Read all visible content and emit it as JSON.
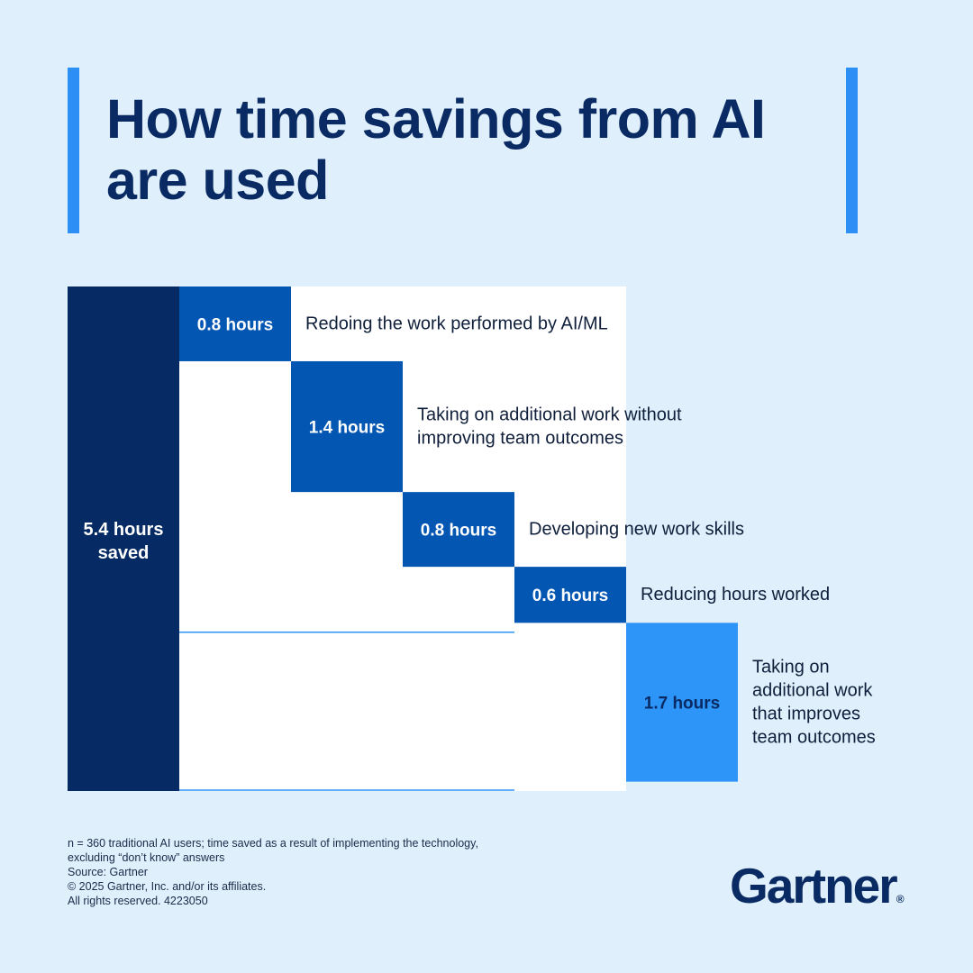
{
  "title": "How time savings from AI are used",
  "chart_data": {
    "type": "bar",
    "total": {
      "value": 5.4,
      "label_line1": "5.4 hours",
      "label_line2": "saved"
    },
    "segments": [
      {
        "value": 0.8,
        "label": "0.8 hours",
        "description": [
          "Redoing the work performed by AI/ML"
        ],
        "color": "#0456b3"
      },
      {
        "value": 1.4,
        "label": "1.4 hours",
        "description": [
          "Taking on additional work without",
          "improving team outcomes"
        ],
        "color": "#0456b3"
      },
      {
        "value": 0.8,
        "label": "0.8 hours",
        "description": [
          "Developing new work skills"
        ],
        "color": "#0456b3"
      },
      {
        "value": 0.6,
        "label": "0.6 hours",
        "description": [
          "Reducing hours worked"
        ],
        "color": "#0456b3"
      },
      {
        "value": 1.7,
        "label": "1.7 hours",
        "description": [
          "Taking on",
          "additional work",
          "that improves",
          "team outcomes"
        ],
        "color": "#2d95f7"
      }
    ],
    "total_color": "#062a63"
  },
  "footnote": [
    "n = 360 traditional AI users; time saved as a result of implementing the technology,",
    "excluding “don’t know” answers",
    "Source: Gartner",
    "© 2025 Gartner, Inc. and/or its affiliates.",
    "All rights reserved. 4223050"
  ],
  "logo": {
    "text": "Gartner",
    "mark": "®"
  }
}
